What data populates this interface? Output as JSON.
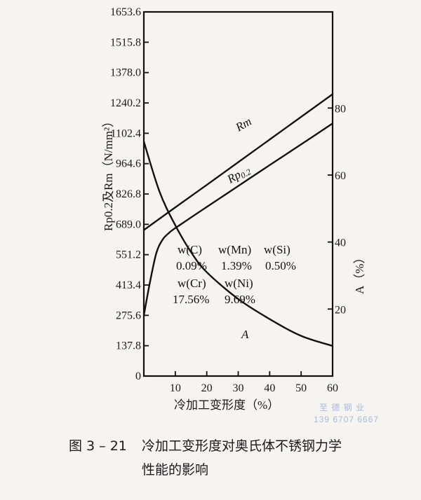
{
  "figure": {
    "number": "图 3 – 21",
    "caption_line1": "冷加工变形度对奥氏体不锈钢力学",
    "caption_line2": "性能的影响",
    "watermark_line1": "至 德 钢 业",
    "watermark_line2": "139 6707 6667"
  },
  "chart_data": {
    "type": "line",
    "title": "冷加工变形度对奥氏体不锈钢力学性能的影响",
    "xlabel": "冷加工变形度（%）",
    "ylabel": "Rp0.2及Rm（N/mm²）",
    "y2label": "A（%）",
    "xlim": [
      0,
      60
    ],
    "ylim": [
      0,
      1653.6
    ],
    "y2lim": [
      0,
      100
    ],
    "x_ticks": [
      10,
      20,
      30,
      40,
      50,
      60
    ],
    "y_ticks": [
      "0",
      "137.8",
      "275.6",
      "413.4",
      "551.2",
      "689.0",
      "826.8",
      "964.6",
      "1102.4",
      "1240.2",
      "1378.0",
      "1515.8",
      "1653.6"
    ],
    "y2_ticks": [
      20,
      40,
      60,
      80
    ],
    "grid": false,
    "series": [
      {
        "name": "Rm",
        "axis": "left",
        "x": [
          0,
          10,
          20,
          30,
          40,
          50,
          60
        ],
        "values": [
          663,
          766,
          868,
          971,
          1074,
          1177,
          1280
        ]
      },
      {
        "name": "Rp0.2",
        "axis": "left",
        "x": [
          0,
          2,
          4,
          6,
          8,
          10,
          20,
          30,
          40,
          50,
          60
        ],
        "values": [
          276,
          430,
          560,
          620,
          650,
          672,
          768,
          863,
          958,
          1052,
          1147
        ]
      },
      {
        "name": "A",
        "axis": "right",
        "x": [
          0,
          5,
          10,
          15,
          20,
          30,
          40,
          50,
          60
        ],
        "values": [
          70,
          55,
          45,
          37,
          31,
          23,
          17,
          12,
          9
        ]
      }
    ],
    "annotations": [
      {
        "label": "w(C)",
        "value": "0.09%"
      },
      {
        "label": "w(Mn)",
        "value": "1.39%"
      },
      {
        "label": "w(Si)",
        "value": "0.50%"
      },
      {
        "label": "w(Cr)",
        "value": "17.56%"
      },
      {
        "label": "w(Ni)",
        "value": "9.69%"
      }
    ],
    "curve_labels": {
      "Rm": "Rm",
      "Rp": "Rp",
      "Rp_sub": "0.2",
      "A": "A"
    }
  }
}
